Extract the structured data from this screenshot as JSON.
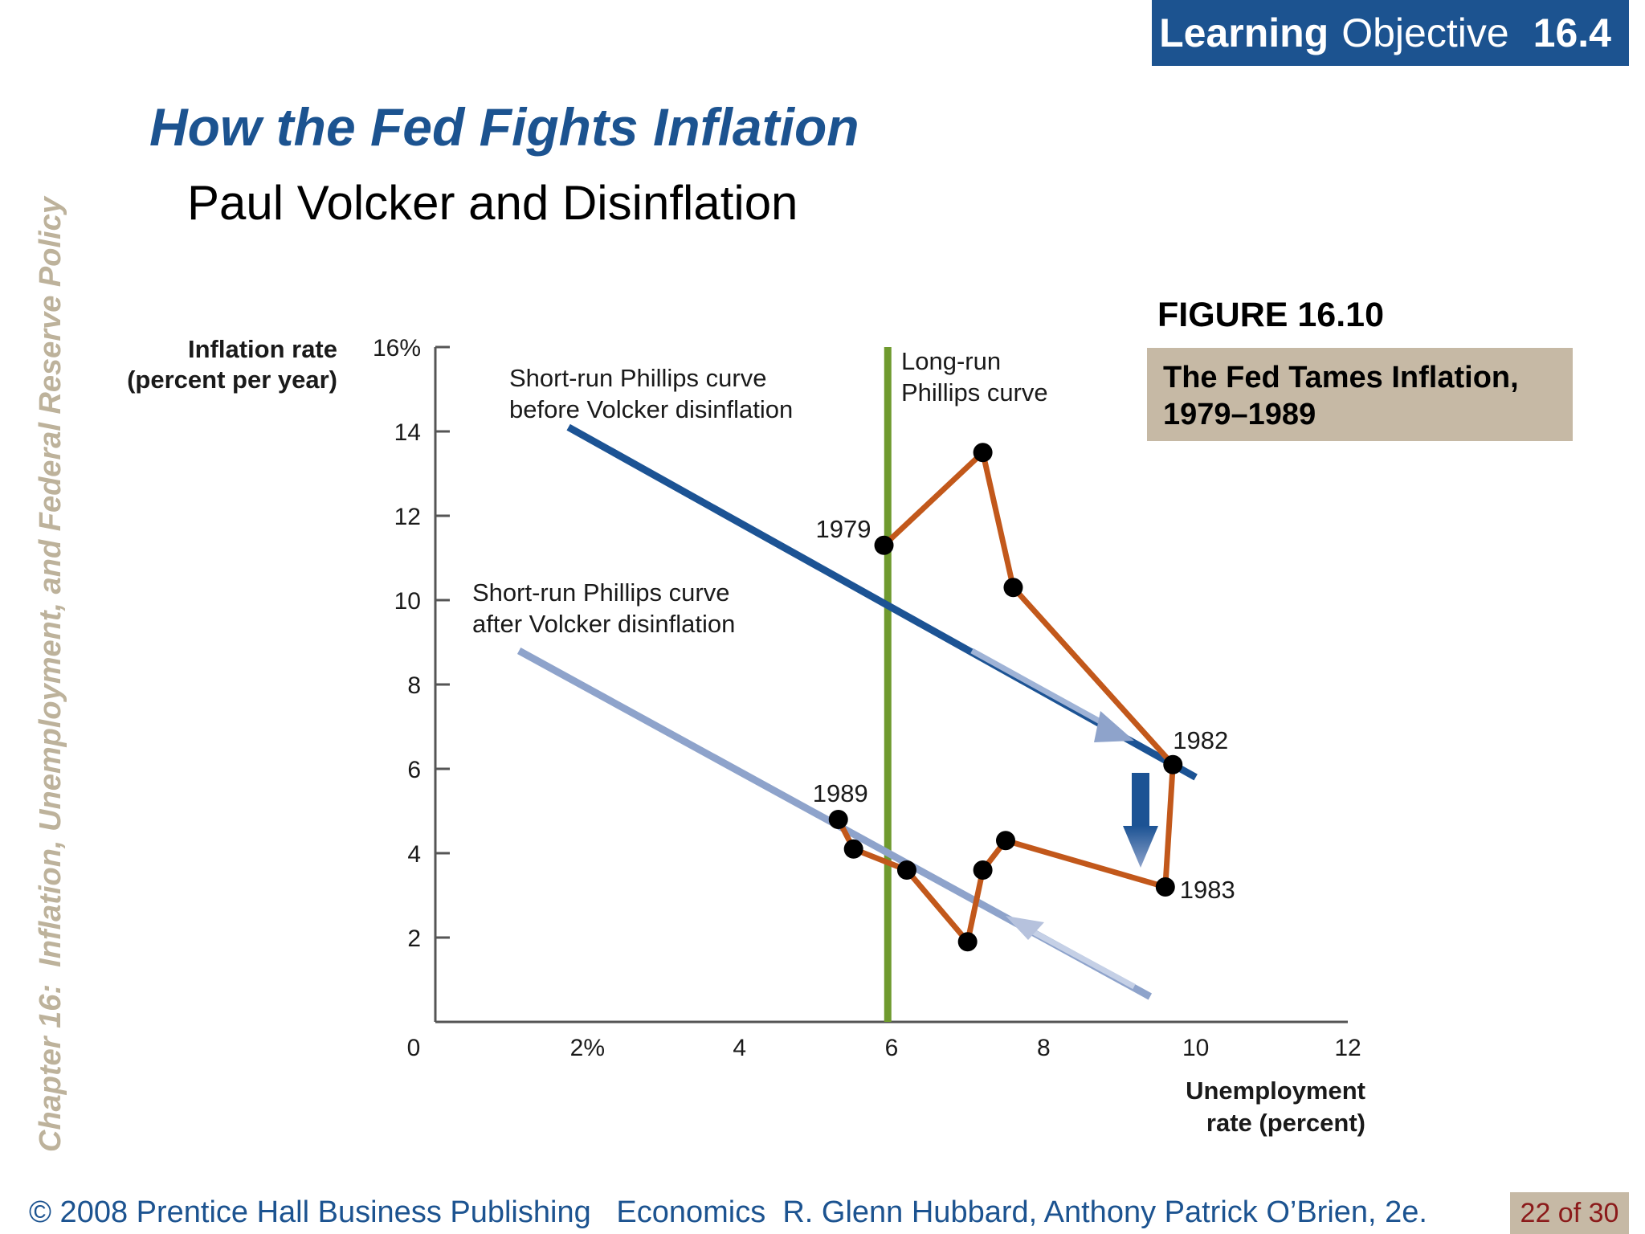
{
  "badge": {
    "prefix": "Learning",
    "word": "Objective",
    "number": "16.4"
  },
  "title": "How the Fed Fights Inflation",
  "subtitle": "Paul Volcker and Disinflation",
  "side_text": "Chapter 16:  Inflation, Unemployment, and Federal Reserve Policy",
  "figure": {
    "label": "FIGURE 16.10",
    "caption_line1": "The Fed Tames Inflation,",
    "caption_line2": "1979–1989"
  },
  "footer": {
    "copyright": "© 2008 Prentice Hall Business Publishing   Economics  R. Glenn Hubbard, Anthony Patrick O’Brien, 2e.",
    "page": "22 of 30"
  },
  "colors": {
    "brand_blue": "#1c5390",
    "beige": "#c6b9a5",
    "page_red": "#8b1a1a",
    "side_text": "#bdb29b",
    "path_orange": "#c2581b",
    "lrpc_green": "#6f9a2e",
    "srpc_before": "#1c5394",
    "srpc_after": "#8ea3cb"
  },
  "chart_data": {
    "type": "line",
    "ylabel_line1": "Inflation rate",
    "ylabel_line2": "(percent per year)",
    "xlabel_line1": "Unemployment",
    "xlabel_line2": "rate (percent)",
    "xlim": [
      0,
      12
    ],
    "ylim": [
      0,
      16
    ],
    "x_ticks": [
      {
        "value": 0,
        "label": "0"
      },
      {
        "value": 2,
        "label": "2%"
      },
      {
        "value": 4,
        "label": "4"
      },
      {
        "value": 6,
        "label": "6"
      },
      {
        "value": 8,
        "label": "8"
      },
      {
        "value": 10,
        "label": "10"
      },
      {
        "value": 12,
        "label": "12"
      }
    ],
    "y_ticks": [
      {
        "value": 2,
        "label": "2"
      },
      {
        "value": 4,
        "label": "4"
      },
      {
        "value": 6,
        "label": "6"
      },
      {
        "value": 8,
        "label": "8"
      },
      {
        "value": 10,
        "label": "10"
      },
      {
        "value": 12,
        "label": "12"
      },
      {
        "value": 14,
        "label": "14"
      },
      {
        "value": 16,
        "label": "16%"
      }
    ],
    "grid": false,
    "long_run_curve": {
      "label_line1": "Long-run",
      "label_line2": "Phillips curve",
      "x": 5.95,
      "y_range": [
        0,
        16
      ]
    },
    "short_run_before": {
      "label_line1": "Short-run Phillips curve",
      "label_line2": "before Volcker disinflation",
      "x": [
        1.75,
        10.0
      ],
      "y": [
        14.1,
        5.8
      ]
    },
    "short_run_after": {
      "label_line1": "Short-run Phillips curve",
      "label_line2": "after Volcker disinflation",
      "x": [
        1.1,
        9.4
      ],
      "y": [
        8.8,
        0.6
      ]
    },
    "series": [
      {
        "points": [
          {
            "x": 5.9,
            "y": 11.3,
            "label": "1979"
          },
          {
            "x": 7.2,
            "y": 13.5,
            "label": ""
          },
          {
            "x": 7.6,
            "y": 10.3,
            "label": ""
          },
          {
            "x": 9.7,
            "y": 6.1,
            "label": "1982"
          },
          {
            "x": 9.6,
            "y": 3.2,
            "label": "1983"
          },
          {
            "x": 7.5,
            "y": 4.3,
            "label": ""
          },
          {
            "x": 7.2,
            "y": 3.6,
            "label": ""
          },
          {
            "x": 7.0,
            "y": 1.9,
            "label": ""
          },
          {
            "x": 6.2,
            "y": 3.6,
            "label": ""
          },
          {
            "x": 5.5,
            "y": 4.1,
            "label": ""
          },
          {
            "x": 5.3,
            "y": 4.8,
            "label": "1989"
          }
        ]
      }
    ]
  }
}
